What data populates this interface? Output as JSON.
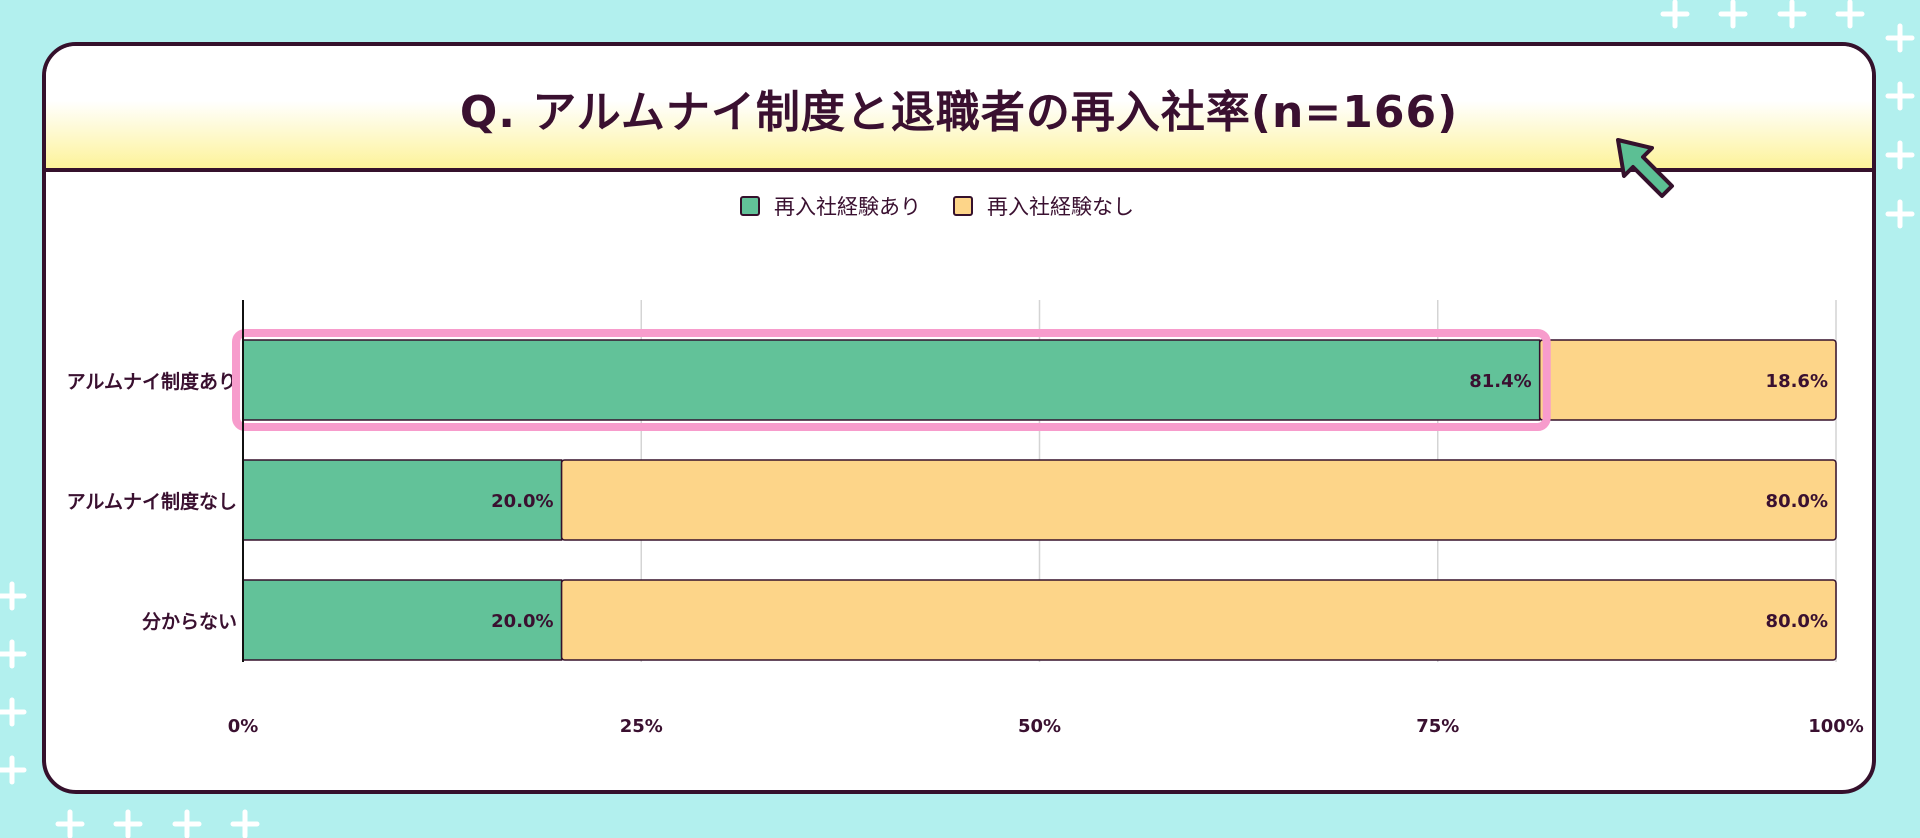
{
  "title": "Q.  アルムナイ制度と退職者の再入社率(n=166)",
  "colors": {
    "background": "#b2f0ee",
    "border": "#35112c",
    "experienced": "#62c299",
    "not_experienced": "#fdd589",
    "highlight": "#f79ccc",
    "cursor": "#5cbf94"
  },
  "legend": [
    {
      "label": "再入社経験あり",
      "color": "#62c299"
    },
    {
      "label": "再入社経験なし",
      "color": "#fdd589"
    }
  ],
  "chart_data": {
    "type": "bar",
    "orientation": "horizontal",
    "stacked": true,
    "categories": [
      "アルムナイ制度あり",
      "アルムナイ制度なし",
      "分からない"
    ],
    "series": [
      {
        "name": "再入社経験あり",
        "values": [
          81.4,
          20.0,
          20.0
        ],
        "labels": [
          "81.4%",
          "20.0%",
          "20.0%"
        ]
      },
      {
        "name": "再入社経験なし",
        "values": [
          18.6,
          80.0,
          80.0
        ],
        "labels": [
          "18.6%",
          "80.0%",
          "80.0%"
        ]
      }
    ],
    "x_ticks": [
      "0%",
      "25%",
      "50%",
      "75%",
      "100%"
    ],
    "xlim": [
      0,
      100
    ],
    "grid": true,
    "legend_position": "top-center",
    "highlighted_category": "アルムナイ制度あり",
    "highlighted_series": "再入社経験あり"
  }
}
